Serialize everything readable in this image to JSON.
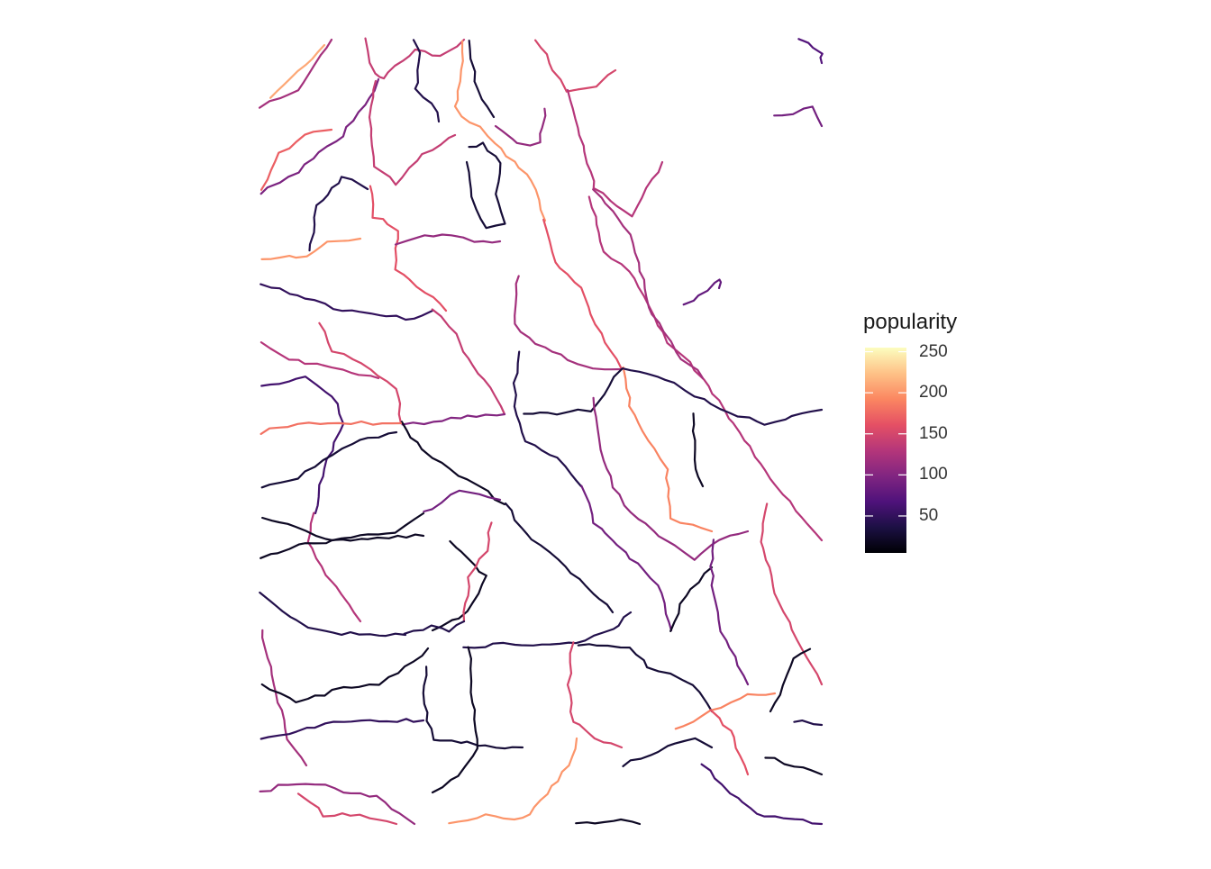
{
  "legend": {
    "title": "popularity",
    "min": 5,
    "max": 255,
    "ticks": [
      {
        "value": 250,
        "label": "250"
      },
      {
        "value": 200,
        "label": "200"
      },
      {
        "value": 150,
        "label": "150"
      },
      {
        "value": 100,
        "label": "100"
      },
      {
        "value": 50,
        "label": "50"
      }
    ]
  },
  "palette": [
    "#000004",
    "#1c1044",
    "#4f127b",
    "#812581",
    "#b5367a",
    "#e55064",
    "#fb8761",
    "#fec287",
    "#fcfdbf"
  ]
}
